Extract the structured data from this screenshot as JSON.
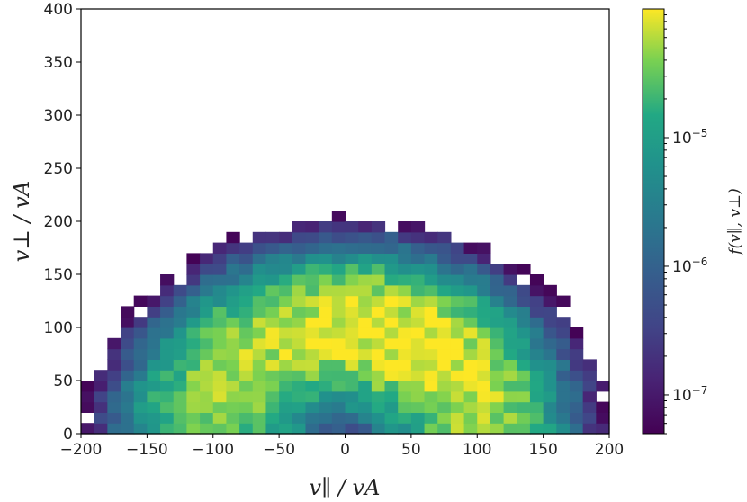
{
  "chart_data": {
    "type": "heatmap",
    "xlabel": "v∥ / vA",
    "ylabel": "v⊥ / vA",
    "xlim": [
      -200,
      200
    ],
    "ylim": [
      0,
      400
    ],
    "x_ticks": [
      "−200",
      "−150",
      "−100",
      "−50",
      "0",
      "50",
      "100",
      "150",
      "200"
    ],
    "y_ticks": [
      "0",
      "50",
      "100",
      "150",
      "200",
      "250",
      "300",
      "350",
      "400"
    ],
    "colorbar": {
      "label": "f(v∥, v⊥)",
      "scale": "log",
      "range": [
        5e-08,
        0.0001
      ],
      "ticks": [
        "10−5",
        "10−6",
        "10−7"
      ],
      "colormap": "viridis"
    },
    "bin_width": 10,
    "distribution": {
      "shape": "crescent-shell",
      "ridge_radius": 100,
      "ridge_center": [
        0,
        0
      ],
      "peak_density": 9e-05,
      "cutoff_density": 5e-08
    }
  }
}
